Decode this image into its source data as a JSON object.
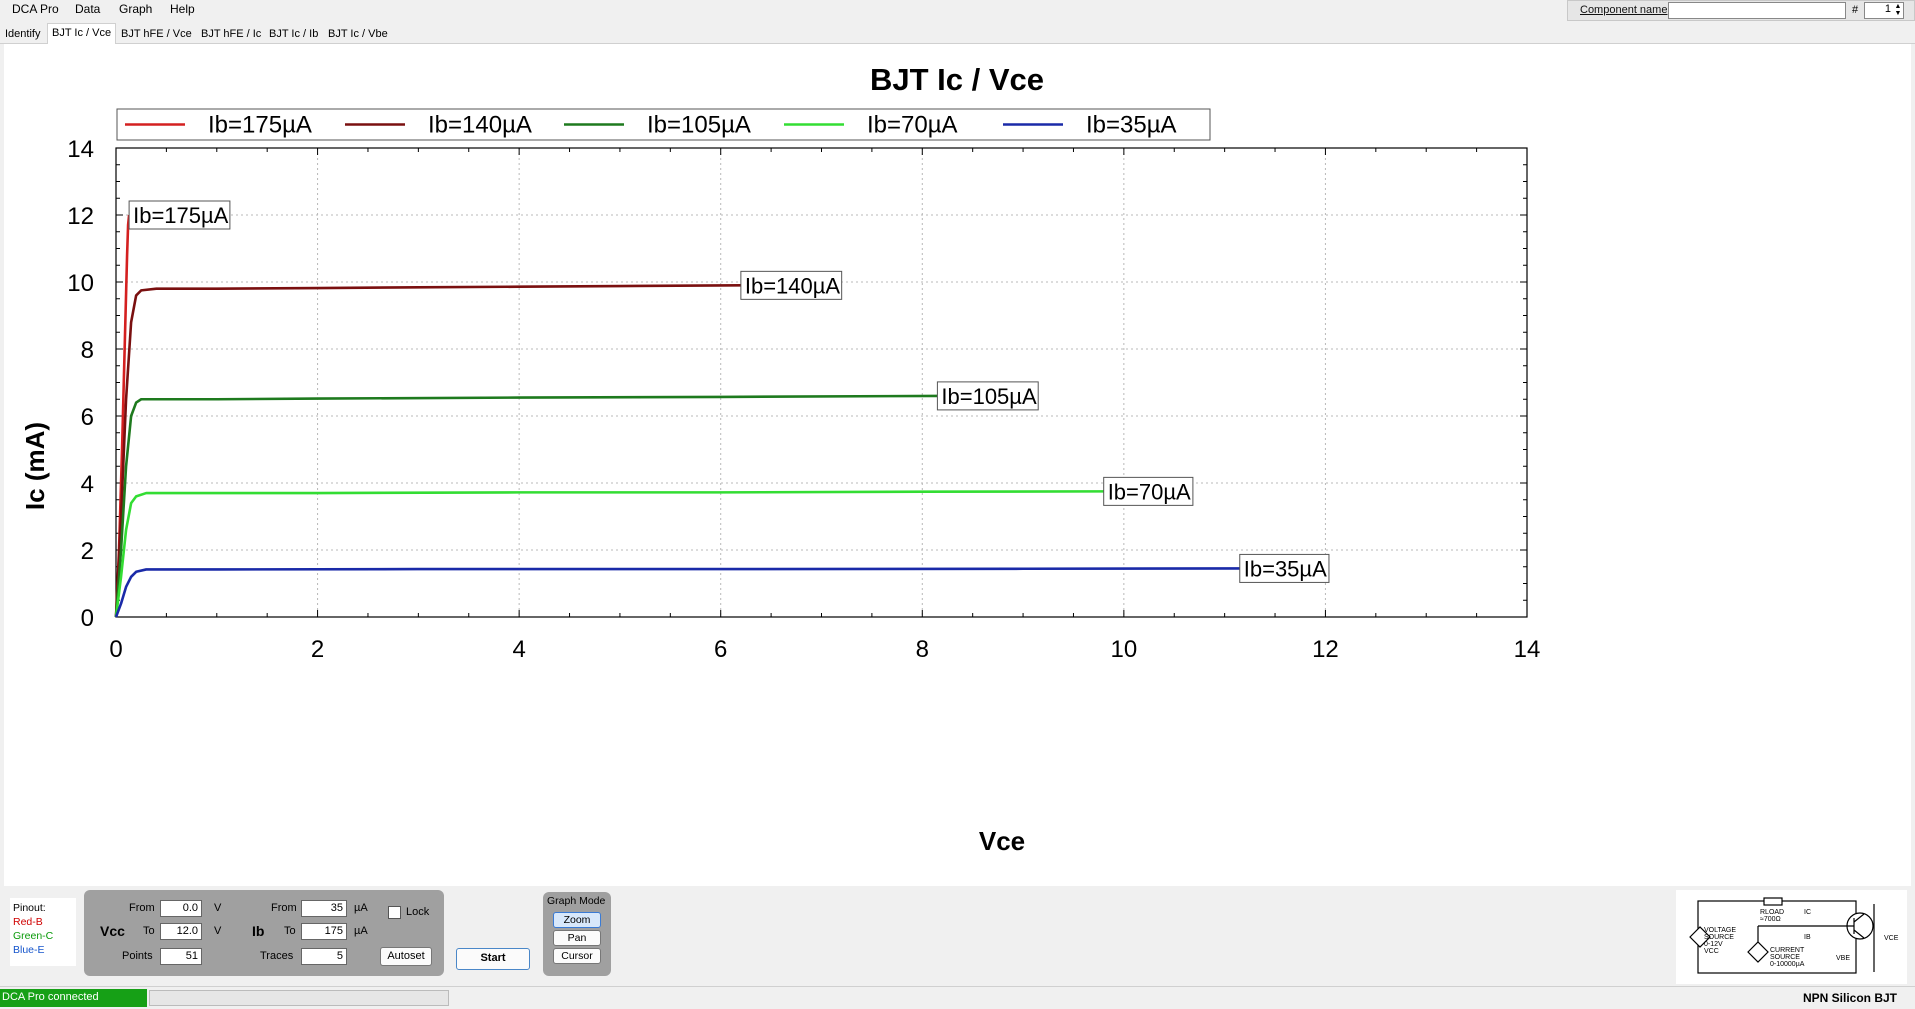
{
  "menu": {
    "items": [
      "DCA Pro",
      "Data",
      "Graph",
      "Help"
    ]
  },
  "component": {
    "label": "Component name",
    "name_value": "",
    "hash_label": "#",
    "number": "1"
  },
  "tabs": [
    "Identify",
    "BJT Ic / Vce",
    "BJT hFE / Vce",
    "BJT hFE / Ic",
    "BJT Ic / Ib",
    "BJT Ic / Vbe"
  ],
  "active_tab": 1,
  "chart_data": {
    "type": "line",
    "title": "BJT Ic / Vce",
    "xlabel": "Vce",
    "ylabel": "Ic (mA)",
    "xlim": [
      0,
      14
    ],
    "ylim": [
      0,
      14
    ],
    "xticks": [
      0,
      2,
      4,
      6,
      8,
      10,
      12,
      14
    ],
    "yticks": [
      0,
      2,
      4,
      6,
      8,
      10,
      12,
      14
    ],
    "grid": true,
    "legend_position": "top-left",
    "series": [
      {
        "name": "Ib=175µA",
        "color": "#d42020",
        "end_label": "Ib=175µA",
        "x": [
          0,
          0.03,
          0.06,
          0.09,
          0.11,
          0.12,
          0.13
        ],
        "y": [
          0,
          2.0,
          5.0,
          8.5,
          10.8,
          11.7,
          12.0
        ]
      },
      {
        "name": "Ib=140µA",
        "color": "#7a1010",
        "end_label": "Ib=140µA",
        "x": [
          0,
          0.05,
          0.1,
          0.15,
          0.2,
          0.25,
          0.4,
          1,
          2,
          3,
          4,
          5,
          6.2
        ],
        "y": [
          0,
          3.0,
          6.5,
          8.8,
          9.6,
          9.75,
          9.8,
          9.8,
          9.82,
          9.84,
          9.86,
          9.88,
          9.9
        ]
      },
      {
        "name": "Ib=105µA",
        "color": "#1e7a1e",
        "end_label": "Ib=105µA",
        "x": [
          0,
          0.05,
          0.1,
          0.15,
          0.2,
          0.25,
          0.4,
          1,
          2,
          4,
          6,
          8.15
        ],
        "y": [
          0,
          2.0,
          4.5,
          6.0,
          6.4,
          6.5,
          6.5,
          6.5,
          6.52,
          6.55,
          6.57,
          6.6
        ]
      },
      {
        "name": "Ib=70µA",
        "color": "#33dd33",
        "end_label": "Ib=70µA",
        "x": [
          0,
          0.05,
          0.1,
          0.15,
          0.2,
          0.3,
          1,
          2,
          4,
          6,
          8,
          9.8
        ],
        "y": [
          0,
          1.2,
          2.6,
          3.4,
          3.6,
          3.7,
          3.7,
          3.7,
          3.72,
          3.72,
          3.74,
          3.75
        ]
      },
      {
        "name": "Ib=35µA",
        "color": "#1a2aa8",
        "end_label": "Ib=35µA",
        "x": [
          0,
          0.05,
          0.1,
          0.15,
          0.2,
          0.3,
          1,
          3,
          6,
          9,
          11.15
        ],
        "y": [
          0,
          0.4,
          0.9,
          1.2,
          1.35,
          1.42,
          1.42,
          1.43,
          1.43,
          1.44,
          1.45
        ]
      }
    ]
  },
  "pinout": {
    "title": "Pinout:",
    "b": "Red-B",
    "c": "Green-C",
    "e": "Blue-E"
  },
  "vcc": {
    "label": "Vcc",
    "from_label": "From",
    "from": "0.0",
    "to_label": "To",
    "to": "12.0",
    "unit": "V",
    "points_label": "Points",
    "points": "51"
  },
  "ib": {
    "label": "Ib",
    "from_label": "From",
    "from": "35",
    "to_label": "To",
    "to": "175",
    "unit": "µA",
    "traces_label": "Traces",
    "traces": "5"
  },
  "lock_label": "Lock",
  "autoset_label": "Autoset",
  "start_label": "Start",
  "graph_mode": {
    "title": "Graph Mode",
    "zoom": "Zoom",
    "pan": "Pan",
    "cursor": "Cursor"
  },
  "circuit": {
    "rload": "RLOAD",
    "rload_value": "≈700Ω",
    "ic": "IC",
    "ib": "IB",
    "vbe": "VBE",
    "vce": "VCE",
    "vsrc1": "VOLTAGE",
    "vsrc2": "SOURCE",
    "vsrc3": "0-12V",
    "vsrc4": "VCC",
    "isrc1": "CURRENT",
    "isrc2": "SOURCE",
    "isrc3": "0-10000µA"
  },
  "status": {
    "connection": "DCA Pro connected",
    "device_type": "NPN Silicon BJT"
  }
}
